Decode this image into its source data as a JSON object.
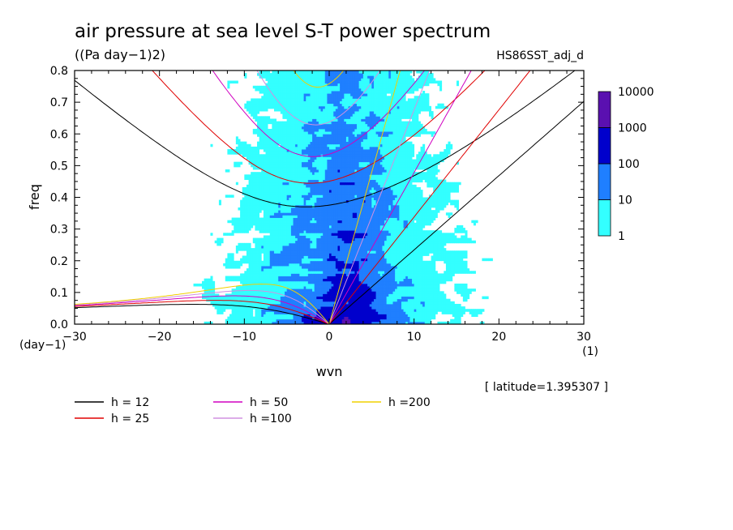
{
  "chart_data": {
    "type": "heatmap",
    "title": "air pressure at sea level S-T power spectrum",
    "units": "((Pa day−1)2)",
    "dataset": "HS86SST_adj_d",
    "xlabel": "wvn",
    "ylabel": "freq",
    "x_unit": "(1)",
    "y_unit": "(day−1)",
    "xlim": [
      -30,
      30
    ],
    "ylim": [
      0,
      0.8
    ],
    "x_ticks": [
      -30,
      -20,
      -10,
      0,
      10,
      20,
      30
    ],
    "x_tick_labels": [
      "−30",
      "−20",
      "−10",
      "0",
      "10",
      "20",
      "30"
    ],
    "y_ticks": [
      0,
      0.1,
      0.2,
      0.3,
      0.4,
      0.5,
      0.6,
      0.7,
      0.8
    ],
    "y_tick_labels": [
      "0.0",
      "0.1",
      "0.2",
      "0.3",
      "0.4",
      "0.5",
      "0.6",
      "0.7",
      "0.8"
    ],
    "annotation": "[ latitude=1.395307 ]",
    "colorbar": {
      "levels": [
        1,
        10,
        100,
        1000,
        10000
      ],
      "labels": [
        "1",
        "10",
        "100",
        "1000",
        "10000"
      ],
      "colors": [
        "#33ffff",
        "#1f7fff",
        "#0000cc",
        "#5a10b0"
      ]
    },
    "series": [
      {
        "name": "h = 12",
        "label": "h = 12",
        "h": 12,
        "color": "#000000"
      },
      {
        "name": "h = 25",
        "label": "h = 25",
        "h": 25,
        "color": "#e00000"
      },
      {
        "name": "h = 50",
        "label": "h = 50",
        "h": 50,
        "color": "#d000c0"
      },
      {
        "name": "h =100",
        "label": "h =100",
        "h": 100,
        "color": "#d090e0"
      },
      {
        "name": "h =200",
        "label": "h =200",
        "h": 200,
        "color": "#f0d000"
      }
    ]
  }
}
